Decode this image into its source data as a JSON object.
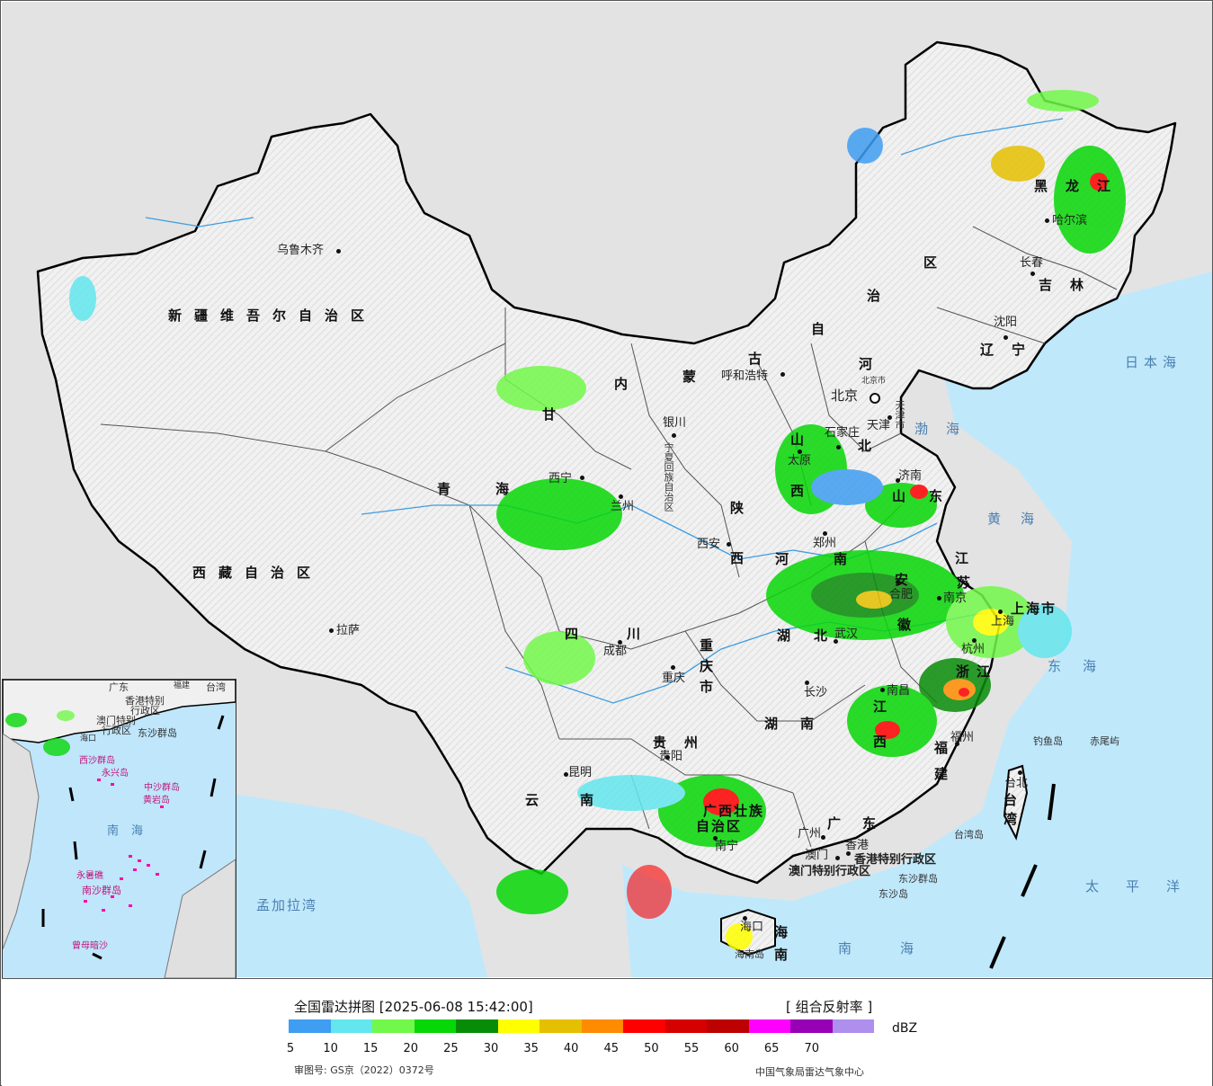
{
  "map": {
    "title": "全国雷达拼图 [2025-06-08 15:42:00]",
    "product": "[ 组合反射率 ]",
    "unit": "dBZ",
    "approval": "审图号: GS京（2022）0372号",
    "source": "中国气象局雷达气象中心",
    "provinces": [
      {
        "name": "新疆维吾尔自治区"
      },
      {
        "name": "西藏自治区"
      },
      {
        "name": "青海"
      },
      {
        "name": "甘"
      },
      {
        "name": "内"
      },
      {
        "name": "蒙"
      },
      {
        "name": "古"
      },
      {
        "name": "自"
      },
      {
        "name": "治"
      },
      {
        "name": "区"
      },
      {
        "name": "黑龙江"
      },
      {
        "name": "吉林"
      },
      {
        "name": "辽宁"
      },
      {
        "name": "河"
      },
      {
        "name": "北"
      },
      {
        "name": "山"
      },
      {
        "name": "西"
      },
      {
        "name": "山"
      },
      {
        "name": "东"
      },
      {
        "name": "陕"
      },
      {
        "name": "西"
      },
      {
        "name": "河"
      },
      {
        "name": "南"
      },
      {
        "name": "江"
      },
      {
        "name": "苏"
      },
      {
        "name": "安"
      },
      {
        "name": "徽"
      },
      {
        "name": "四川"
      },
      {
        "name": "重庆市"
      },
      {
        "name": "湖"
      },
      {
        "name": "北"
      },
      {
        "name": "湖"
      },
      {
        "name": "南"
      },
      {
        "name": "贵州"
      },
      {
        "name": "云南"
      },
      {
        "name": "广西壮族"
      },
      {
        "name": "自治区"
      },
      {
        "name": "广东"
      },
      {
        "name": "江西"
      },
      {
        "name": "浙江"
      },
      {
        "name": "福建"
      },
      {
        "name": "上海市"
      },
      {
        "name": "台湾"
      },
      {
        "name": "海南"
      },
      {
        "name": "宁夏回族自治区"
      },
      {
        "name": "天津市"
      }
    ],
    "cities": [
      {
        "name": "乌鲁木齐"
      },
      {
        "name": "拉萨"
      },
      {
        "name": "西宁"
      },
      {
        "name": "兰州"
      },
      {
        "name": "银川"
      },
      {
        "name": "呼和浩特"
      },
      {
        "name": "北京"
      },
      {
        "name": "北京市"
      },
      {
        "name": "天津"
      },
      {
        "name": "石家庄"
      },
      {
        "name": "太原"
      },
      {
        "name": "济南"
      },
      {
        "name": "郑州"
      },
      {
        "name": "西安"
      },
      {
        "name": "合肥"
      },
      {
        "name": "南京"
      },
      {
        "name": "上海"
      },
      {
        "name": "杭州"
      },
      {
        "name": "武汉"
      },
      {
        "name": "成都"
      },
      {
        "name": "重庆"
      },
      {
        "name": "长沙"
      },
      {
        "name": "南昌"
      },
      {
        "name": "福州"
      },
      {
        "name": "贵阳"
      },
      {
        "name": "昆明"
      },
      {
        "name": "南宁"
      },
      {
        "name": "广州"
      },
      {
        "name": "澳门"
      },
      {
        "name": "香港"
      },
      {
        "name": "海口"
      },
      {
        "name": "台北"
      },
      {
        "name": "哈尔滨"
      },
      {
        "name": "长春"
      },
      {
        "name": "沈阳"
      }
    ],
    "seas": [
      {
        "name": "日本海"
      },
      {
        "name": "渤海"
      },
      {
        "name": "黄海"
      },
      {
        "name": "东海"
      },
      {
        "name": "太平洋"
      },
      {
        "name": "南海"
      },
      {
        "name": "孟加拉湾"
      }
    ],
    "islands": [
      {
        "name": "钓鱼岛"
      },
      {
        "name": "赤尾屿"
      },
      {
        "name": "台湾岛"
      },
      {
        "name": "东沙群岛"
      },
      {
        "name": "东沙岛"
      },
      {
        "name": "海南岛"
      },
      {
        "name": "香港特别行政区"
      },
      {
        "name": "澳门特别行政区"
      }
    ],
    "inset_labels": [
      {
        "name": "广东"
      },
      {
        "name": "福建"
      },
      {
        "name": "台湾"
      },
      {
        "name": "香港特别"
      },
      {
        "name": "行政区"
      },
      {
        "name": "澳门特别"
      },
      {
        "name": "行政区"
      },
      {
        "name": "东沙群岛"
      },
      {
        "name": "海口"
      },
      {
        "name": "西沙群岛"
      },
      {
        "name": "永兴岛"
      },
      {
        "name": "中沙群岛"
      },
      {
        "name": "黄岩岛"
      },
      {
        "name": "南海"
      },
      {
        "name": "永暑礁"
      },
      {
        "name": "南沙群岛"
      },
      {
        "name": "曾母暗沙"
      }
    ]
  },
  "legend": {
    "colors": [
      "#3f9df2",
      "#63e6ee",
      "#72f84a",
      "#07d707",
      "#088c08",
      "#ffff00",
      "#e5c000",
      "#ff8b00",
      "#ff0000",
      "#d60000",
      "#bd0000",
      "#ff00ff",
      "#9700b5",
      "#ae8fed"
    ],
    "ticks": [
      "5",
      "10",
      "15",
      "20",
      "25",
      "30",
      "35",
      "40",
      "45",
      "50",
      "55",
      "60",
      "65",
      "70"
    ]
  }
}
